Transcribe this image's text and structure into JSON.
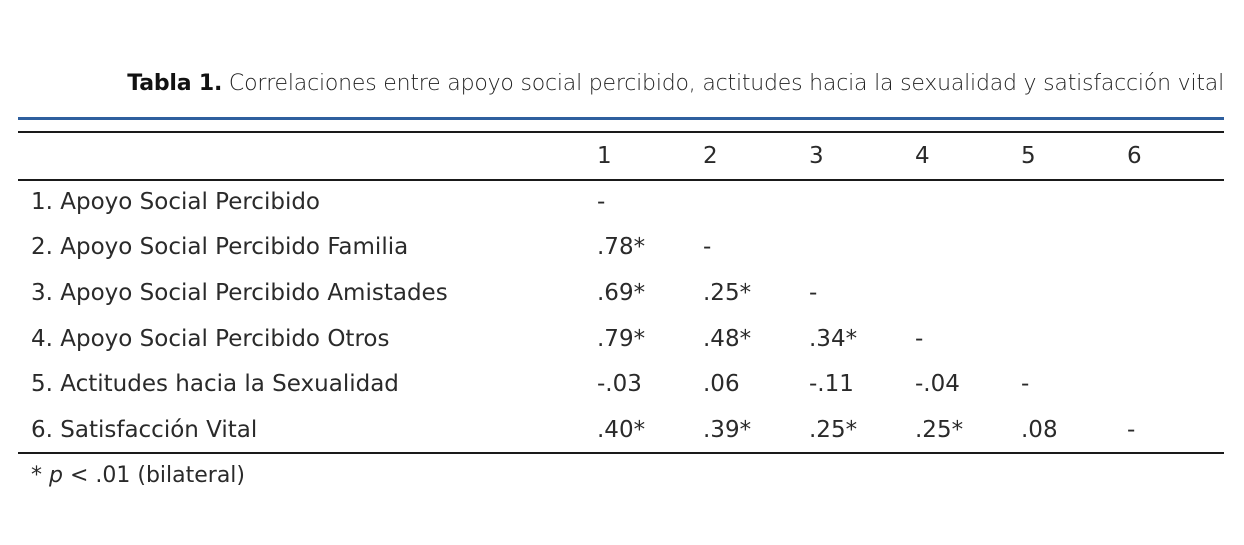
{
  "table": {
    "caption_label": "Tabla 1.",
    "caption_text": " Correlaciones entre apoyo social percibido, actitudes hacia la sexualidad y satisfacción vital",
    "headers": [
      "1",
      "2",
      "3",
      "4",
      "5",
      "6"
    ],
    "rows": [
      {
        "label": "1. Apoyo Social Percibido",
        "values": [
          "-",
          "",
          "",
          "",
          "",
          ""
        ]
      },
      {
        "label": "2. Apoyo Social Percibido Familia",
        "values": [
          ".78*",
          "-",
          "",
          "",
          "",
          ""
        ]
      },
      {
        "label": "3. Apoyo Social Percibido Amistades",
        "values": [
          ".69*",
          ".25*",
          "-",
          "",
          "",
          ""
        ]
      },
      {
        "label": "4. Apoyo Social Percibido Otros",
        "values": [
          ".79*",
          ".48*",
          ".34*",
          "-",
          "",
          ""
        ]
      },
      {
        "label": "5. Actitudes hacia la Sexualidad",
        "values": [
          "-.03",
          ".06",
          "-.11",
          "-.04",
          "-",
          ""
        ]
      },
      {
        "label": "6. Satisfacción Vital",
        "values": [
          ".40*",
          ".39*",
          ".25*",
          ".25*",
          ".08",
          "-"
        ]
      }
    ],
    "note": {
      "star": "* ",
      "p": "p",
      "rest": " < .01 (bilateral)"
    }
  },
  "colors": {
    "accent_rule": "#2e5f9e",
    "rule": "#1a1a1a",
    "text": "#2a2a2a"
  }
}
